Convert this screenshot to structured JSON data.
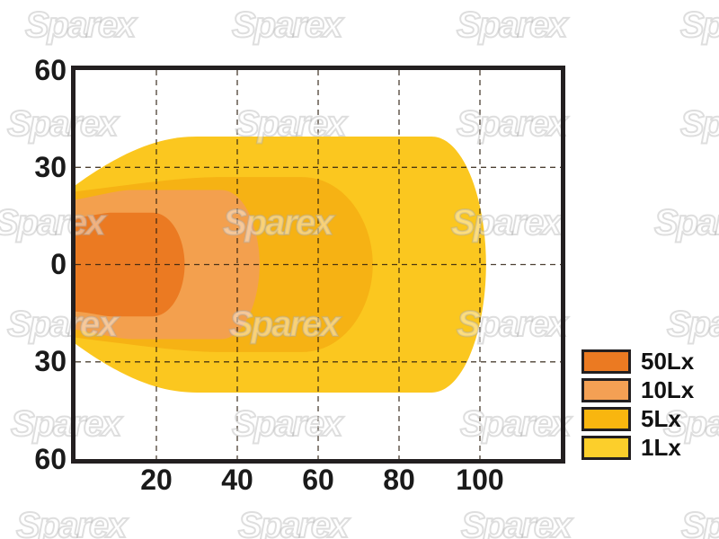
{
  "page": {
    "background": "#FFFFFF"
  },
  "watermark": {
    "text": "Sparex"
  },
  "chart_data": {
    "type": "contour",
    "title": "",
    "x_axis": {
      "tick_labels": [
        "20",
        "40",
        "60",
        "80",
        "100"
      ],
      "tick_values": [
        20,
        40,
        60,
        80,
        100
      ],
      "range": [
        0,
        120
      ]
    },
    "y_axis": {
      "tick_labels": [
        "60",
        "30",
        "0",
        "30",
        "60"
      ],
      "tick_values": [
        60,
        30,
        0,
        -30,
        -60
      ],
      "range": [
        -60,
        60
      ]
    },
    "grid": "dashed",
    "legend_position": "right",
    "series": [
      {
        "name": "1Lx",
        "level_lux": 1,
        "color": "#FBC71F",
        "x_reach": 101.5,
        "halfwidth_max": 39.5,
        "halfwidth_at_source": 24.5,
        "flat_from": 30,
        "flat_to": 88
      },
      {
        "name": "5Lx",
        "level_lux": 5,
        "color": "#F6B214",
        "x_reach": 73.5,
        "halfwidth_max": 27,
        "halfwidth_at_source": 22.5,
        "flat_from": 36,
        "flat_to": 56
      },
      {
        "name": "10Lx",
        "level_lux": 10,
        "color": "#F3A04E",
        "x_reach": 45.5,
        "halfwidth_max": 23,
        "halfwidth_at_source": 20,
        "flat_from": 14,
        "flat_to": 36
      },
      {
        "name": "50Lx",
        "level_lux": 50,
        "color": "#EB7A22",
        "x_reach": 27,
        "halfwidth_max": 16,
        "halfwidth_at_source": 14.5,
        "flat_from": 9,
        "flat_to": 19
      }
    ],
    "legend": [
      {
        "label": "50Lx",
        "color": "#EB7A22"
      },
      {
        "label": "10Lx",
        "color": "#F4A054"
      },
      {
        "label": "5Lx",
        "color": "#F9B60F"
      },
      {
        "label": "1Lx",
        "color": "#FCCF2B"
      }
    ]
  }
}
